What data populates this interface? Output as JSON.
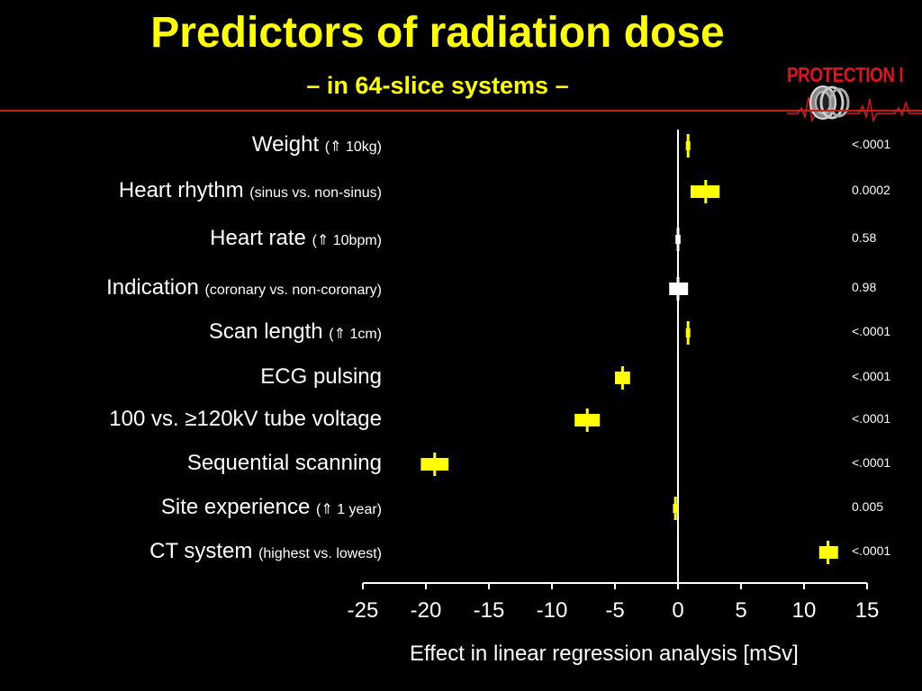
{
  "slide": {
    "title": "Predictors of radiation dose",
    "subtitle": "– in 64-slice systems –",
    "logo_text": "PROTECTION I"
  },
  "colors": {
    "background": "#000000",
    "title": "#ffff00",
    "significant": "#ffff00",
    "non_significant": "#ffffff",
    "rule": "#c81e1e",
    "logo": "#e0141e"
  },
  "chart_data": {
    "type": "forest",
    "xlabel": "Effect in linear regression analysis [mSv]",
    "xlim": [
      -25,
      15
    ],
    "xticks": [
      -25,
      -20,
      -15,
      -10,
      -5,
      0,
      5,
      10,
      15
    ],
    "reference_line": 0,
    "rows": [
      {
        "label": "Weight",
        "qualifier": "(⇑ 10kg)",
        "estimate": 0.8,
        "ci_low": 0.7,
        "ci_high": 0.9,
        "p": "<.0001",
        "significant": true
      },
      {
        "label": "Heart rhythm",
        "qualifier": "(sinus vs. non-sinus)",
        "estimate": 2.2,
        "ci_low": 1.0,
        "ci_high": 3.3,
        "p": "0.0002",
        "significant": true
      },
      {
        "label": "Heart rate",
        "qualifier": "(⇑ 10bpm)",
        "estimate": 0.0,
        "ci_low": -0.2,
        "ci_high": 0.2,
        "p": "0.58",
        "significant": false
      },
      {
        "label": "Indication",
        "qualifier": "(coronary vs. non-coronary)",
        "estimate": 0.0,
        "ci_low": -0.7,
        "ci_high": 0.8,
        "p": "0.98",
        "significant": false
      },
      {
        "label": "Scan length",
        "qualifier": "(⇑ 1cm)",
        "estimate": 0.8,
        "ci_low": 0.7,
        "ci_high": 0.9,
        "p": "<.0001",
        "significant": true
      },
      {
        "label": "ECG pulsing",
        "qualifier": "",
        "estimate": -4.4,
        "ci_low": -5.0,
        "ci_high": -3.8,
        "p": "<.0001",
        "significant": true
      },
      {
        "label": "100 vs. ≥120kV tube voltage",
        "qualifier": "",
        "estimate": -7.2,
        "ci_low": -8.2,
        "ci_high": -6.2,
        "p": "<.0001",
        "significant": true
      },
      {
        "label": "Sequential scanning",
        "qualifier": "",
        "estimate": -19.3,
        "ci_low": -20.4,
        "ci_high": -18.2,
        "p": "<.0001",
        "significant": true
      },
      {
        "label": "Site experience",
        "qualifier": "(⇑ 1 year)",
        "estimate": -0.2,
        "ci_low": -0.4,
        "ci_high": 0.0,
        "p": "0.005",
        "significant": true
      },
      {
        "label": "CT system",
        "qualifier": "(highest vs. lowest)",
        "estimate": 11.9,
        "ci_low": 11.2,
        "ci_high": 12.7,
        "p": "<.0001",
        "significant": true
      }
    ]
  }
}
